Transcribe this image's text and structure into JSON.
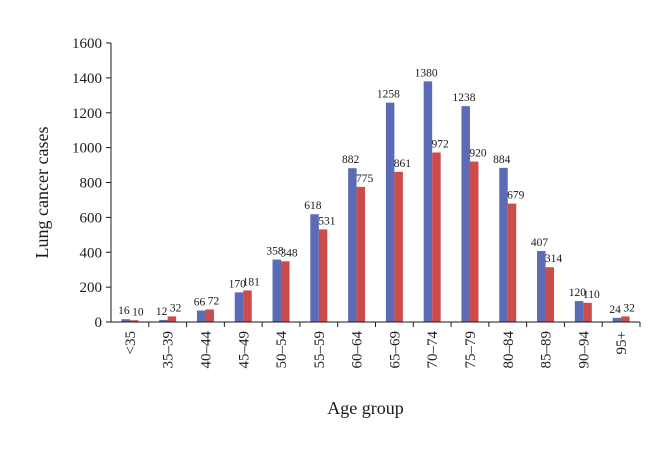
{
  "chart_data": {
    "type": "bar",
    "xlabel": "Age group",
    "ylabel": "Lung cancer cases",
    "ylim": [
      0,
      1600
    ],
    "yticks": [
      0,
      200,
      400,
      600,
      800,
      1000,
      1200,
      1400,
      1600
    ],
    "grid": false,
    "categories": [
      "<35",
      "35–39",
      "40–44",
      "45–49",
      "50–54",
      "55–59",
      "60–64",
      "65–69",
      "70–74",
      "75–79",
      "80–84",
      "85–89",
      "90–94",
      "95+"
    ],
    "series": [
      {
        "color": "#5b6bb5",
        "values": [
          16,
          12,
          66,
          170,
          358,
          618,
          882,
          1258,
          1380,
          1238,
          884,
          407,
          120,
          24
        ]
      },
      {
        "color": "#cc4b4b",
        "values": [
          10,
          32,
          72,
          181,
          348,
          531,
          775,
          861,
          972,
          920,
          679,
          314,
          110,
          32
        ]
      }
    ]
  }
}
